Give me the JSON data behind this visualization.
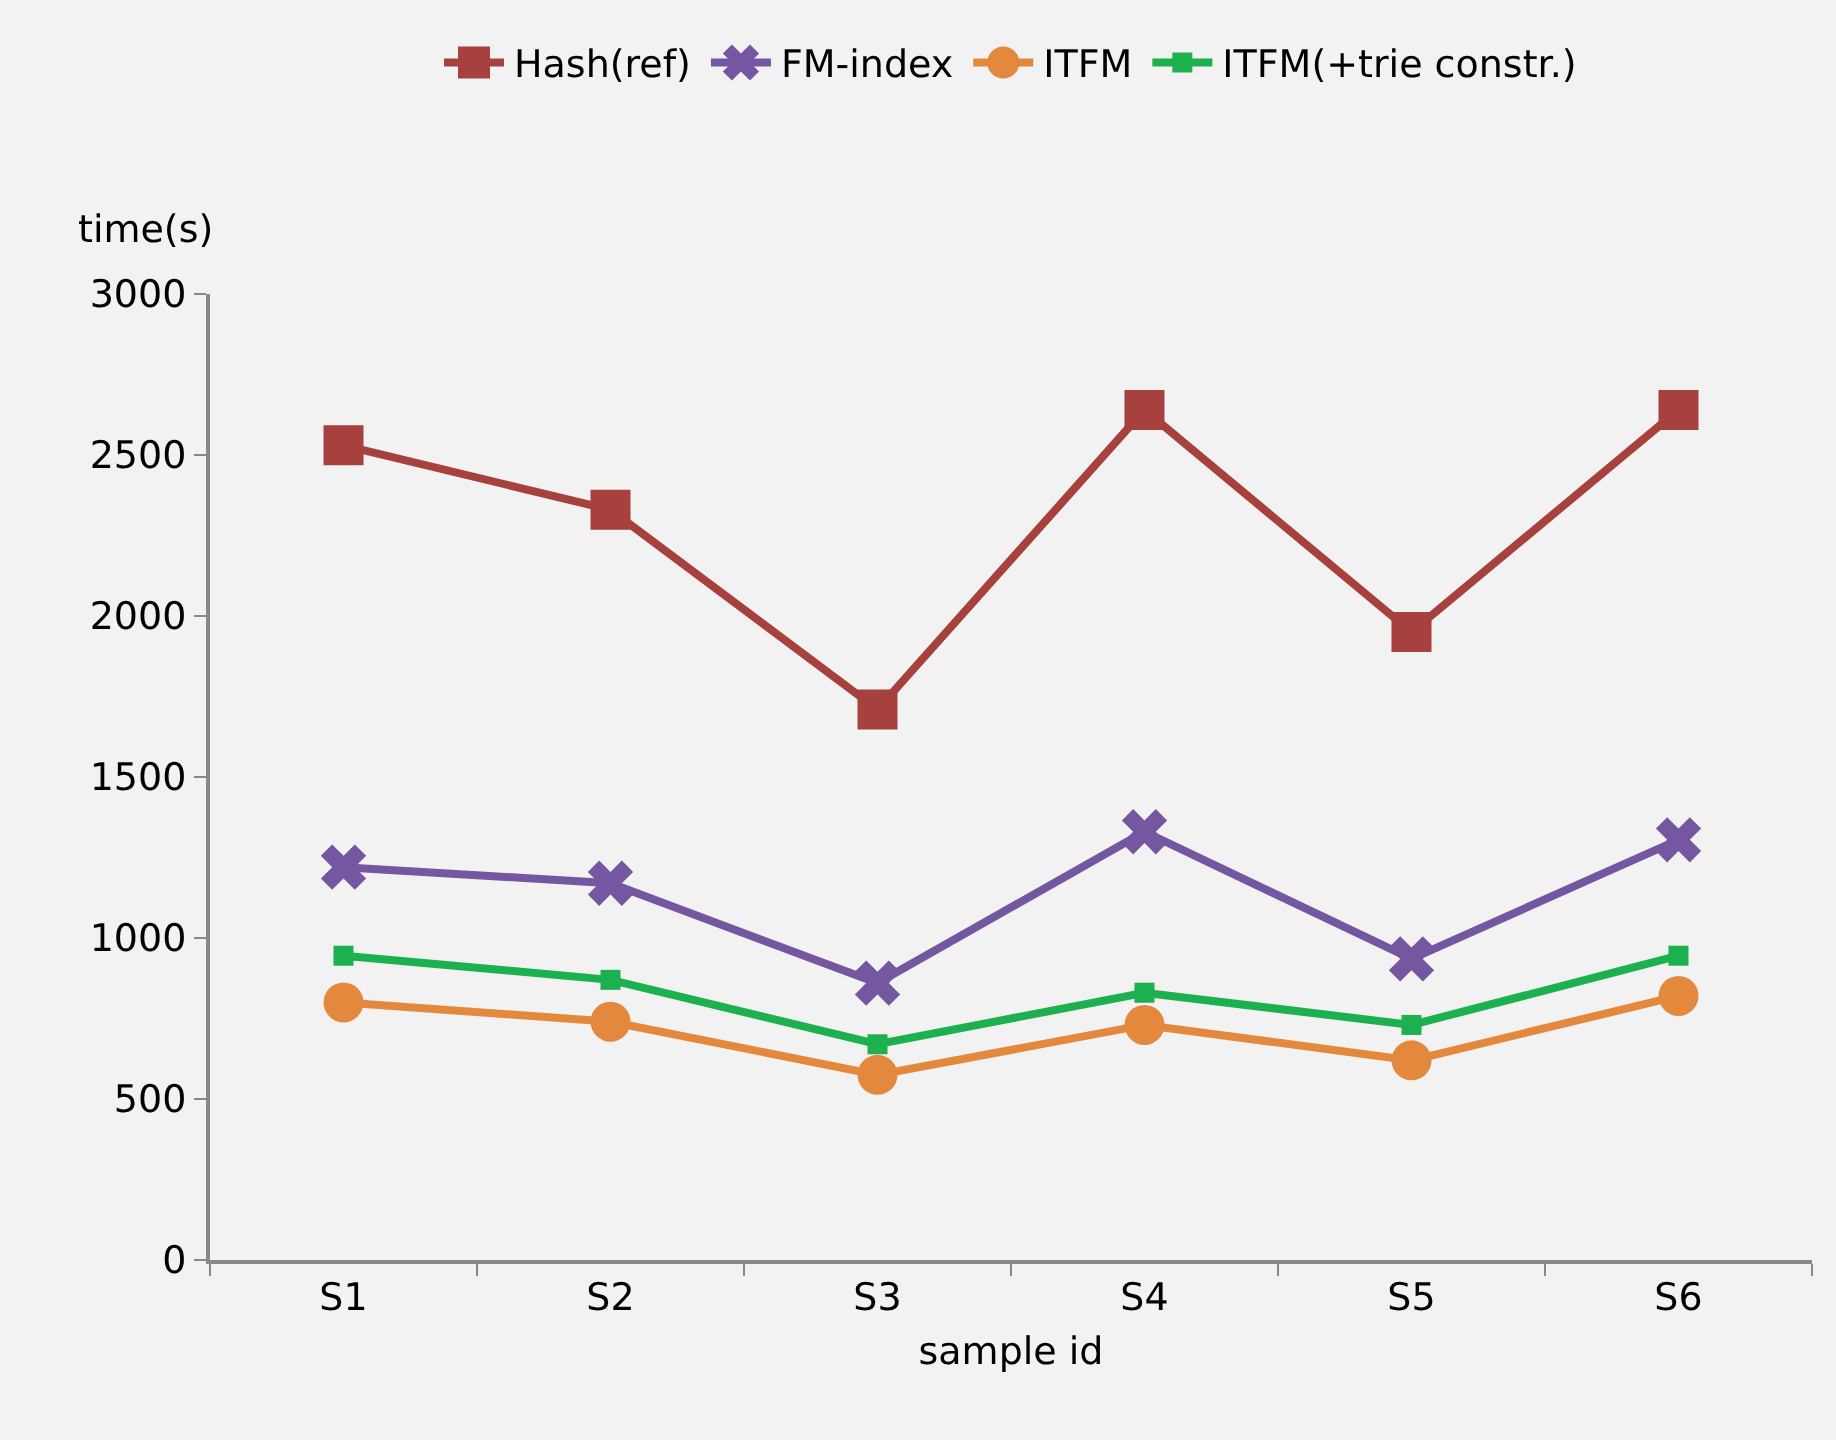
{
  "chart_data": {
    "type": "line",
    "xlabel": "sample id",
    "ylabel": "time(s)",
    "categories": [
      "S1",
      "S2",
      "S3",
      "S4",
      "S5",
      "S6"
    ],
    "series": [
      {
        "name": "Hash(ref)",
        "color": "#a6413e",
        "marker": "square",
        "values": [
          2530,
          2330,
          1710,
          2640,
          1950,
          2640
        ]
      },
      {
        "name": "FM-index",
        "color": "#7457a0",
        "marker": "cross",
        "values": [
          1220,
          1170,
          860,
          1330,
          935,
          1305
        ]
      },
      {
        "name": "ITFM",
        "color": "#e3883c",
        "marker": "circle",
        "values": [
          800,
          740,
          575,
          730,
          620,
          820
        ]
      },
      {
        "name": "ITFM(+trie constr.)",
        "color": "#1db04e",
        "marker": "square",
        "values": [
          945,
          870,
          670,
          830,
          730,
          945
        ]
      }
    ],
    "ylim": [
      0,
      3000
    ],
    "yticks": [
      0,
      500,
      1000,
      1500,
      2000,
      2500,
      3000
    ],
    "grid": false,
    "legend": "top",
    "line_style": "solid"
  }
}
